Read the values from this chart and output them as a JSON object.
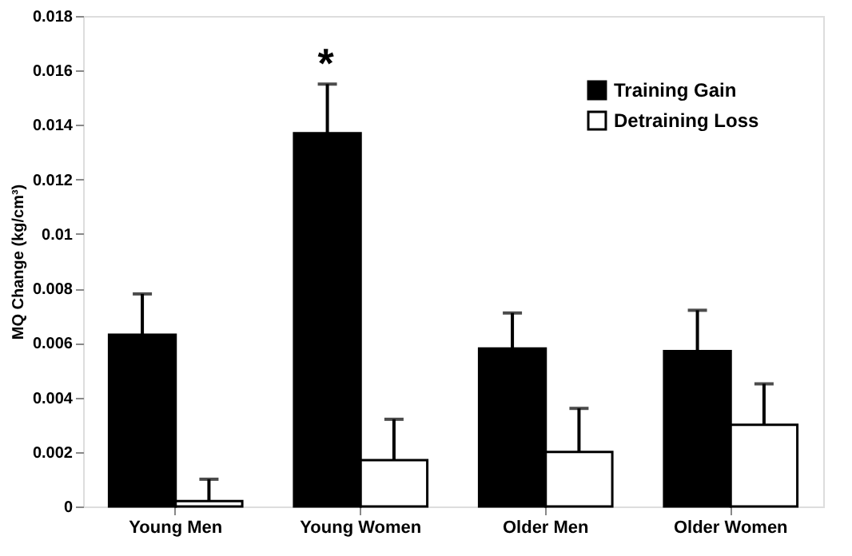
{
  "chart_data": {
    "type": "bar",
    "categories": [
      "Young Men",
      "Young Women",
      "Older Men",
      "Older Women"
    ],
    "ylabel": "MQ Change (kg/cm³)",
    "series": [
      {
        "name": "Training Gain",
        "color": "#000000",
        "values": [
          0.0063,
          0.0137,
          0.0058,
          0.0057
        ],
        "errors": [
          [
            0.0063,
            0.0078
          ],
          [
            0.0137,
            0.0155
          ],
          [
            0.0058,
            0.0071
          ],
          [
            0.0057,
            0.0072
          ]
        ]
      },
      {
        "name": "Detraining Loss",
        "color": "#ffffff",
        "values": [
          0.0002,
          0.0017,
          0.002,
          0.003
        ],
        "errors": [
          [
            0.0002,
            0.001
          ],
          [
            0.0017,
            0.0032
          ],
          [
            0.002,
            0.0036
          ],
          [
            0.003,
            0.0045
          ]
        ]
      }
    ],
    "ylim": [
      0,
      0.018
    ],
    "yticks": [
      0,
      0.002,
      0.004,
      0.006,
      0.008,
      0.01,
      0.012,
      0.014,
      0.016,
      0.018
    ],
    "annotations": [
      "*"
    ],
    "legend": "top right",
    "grid": false
  }
}
